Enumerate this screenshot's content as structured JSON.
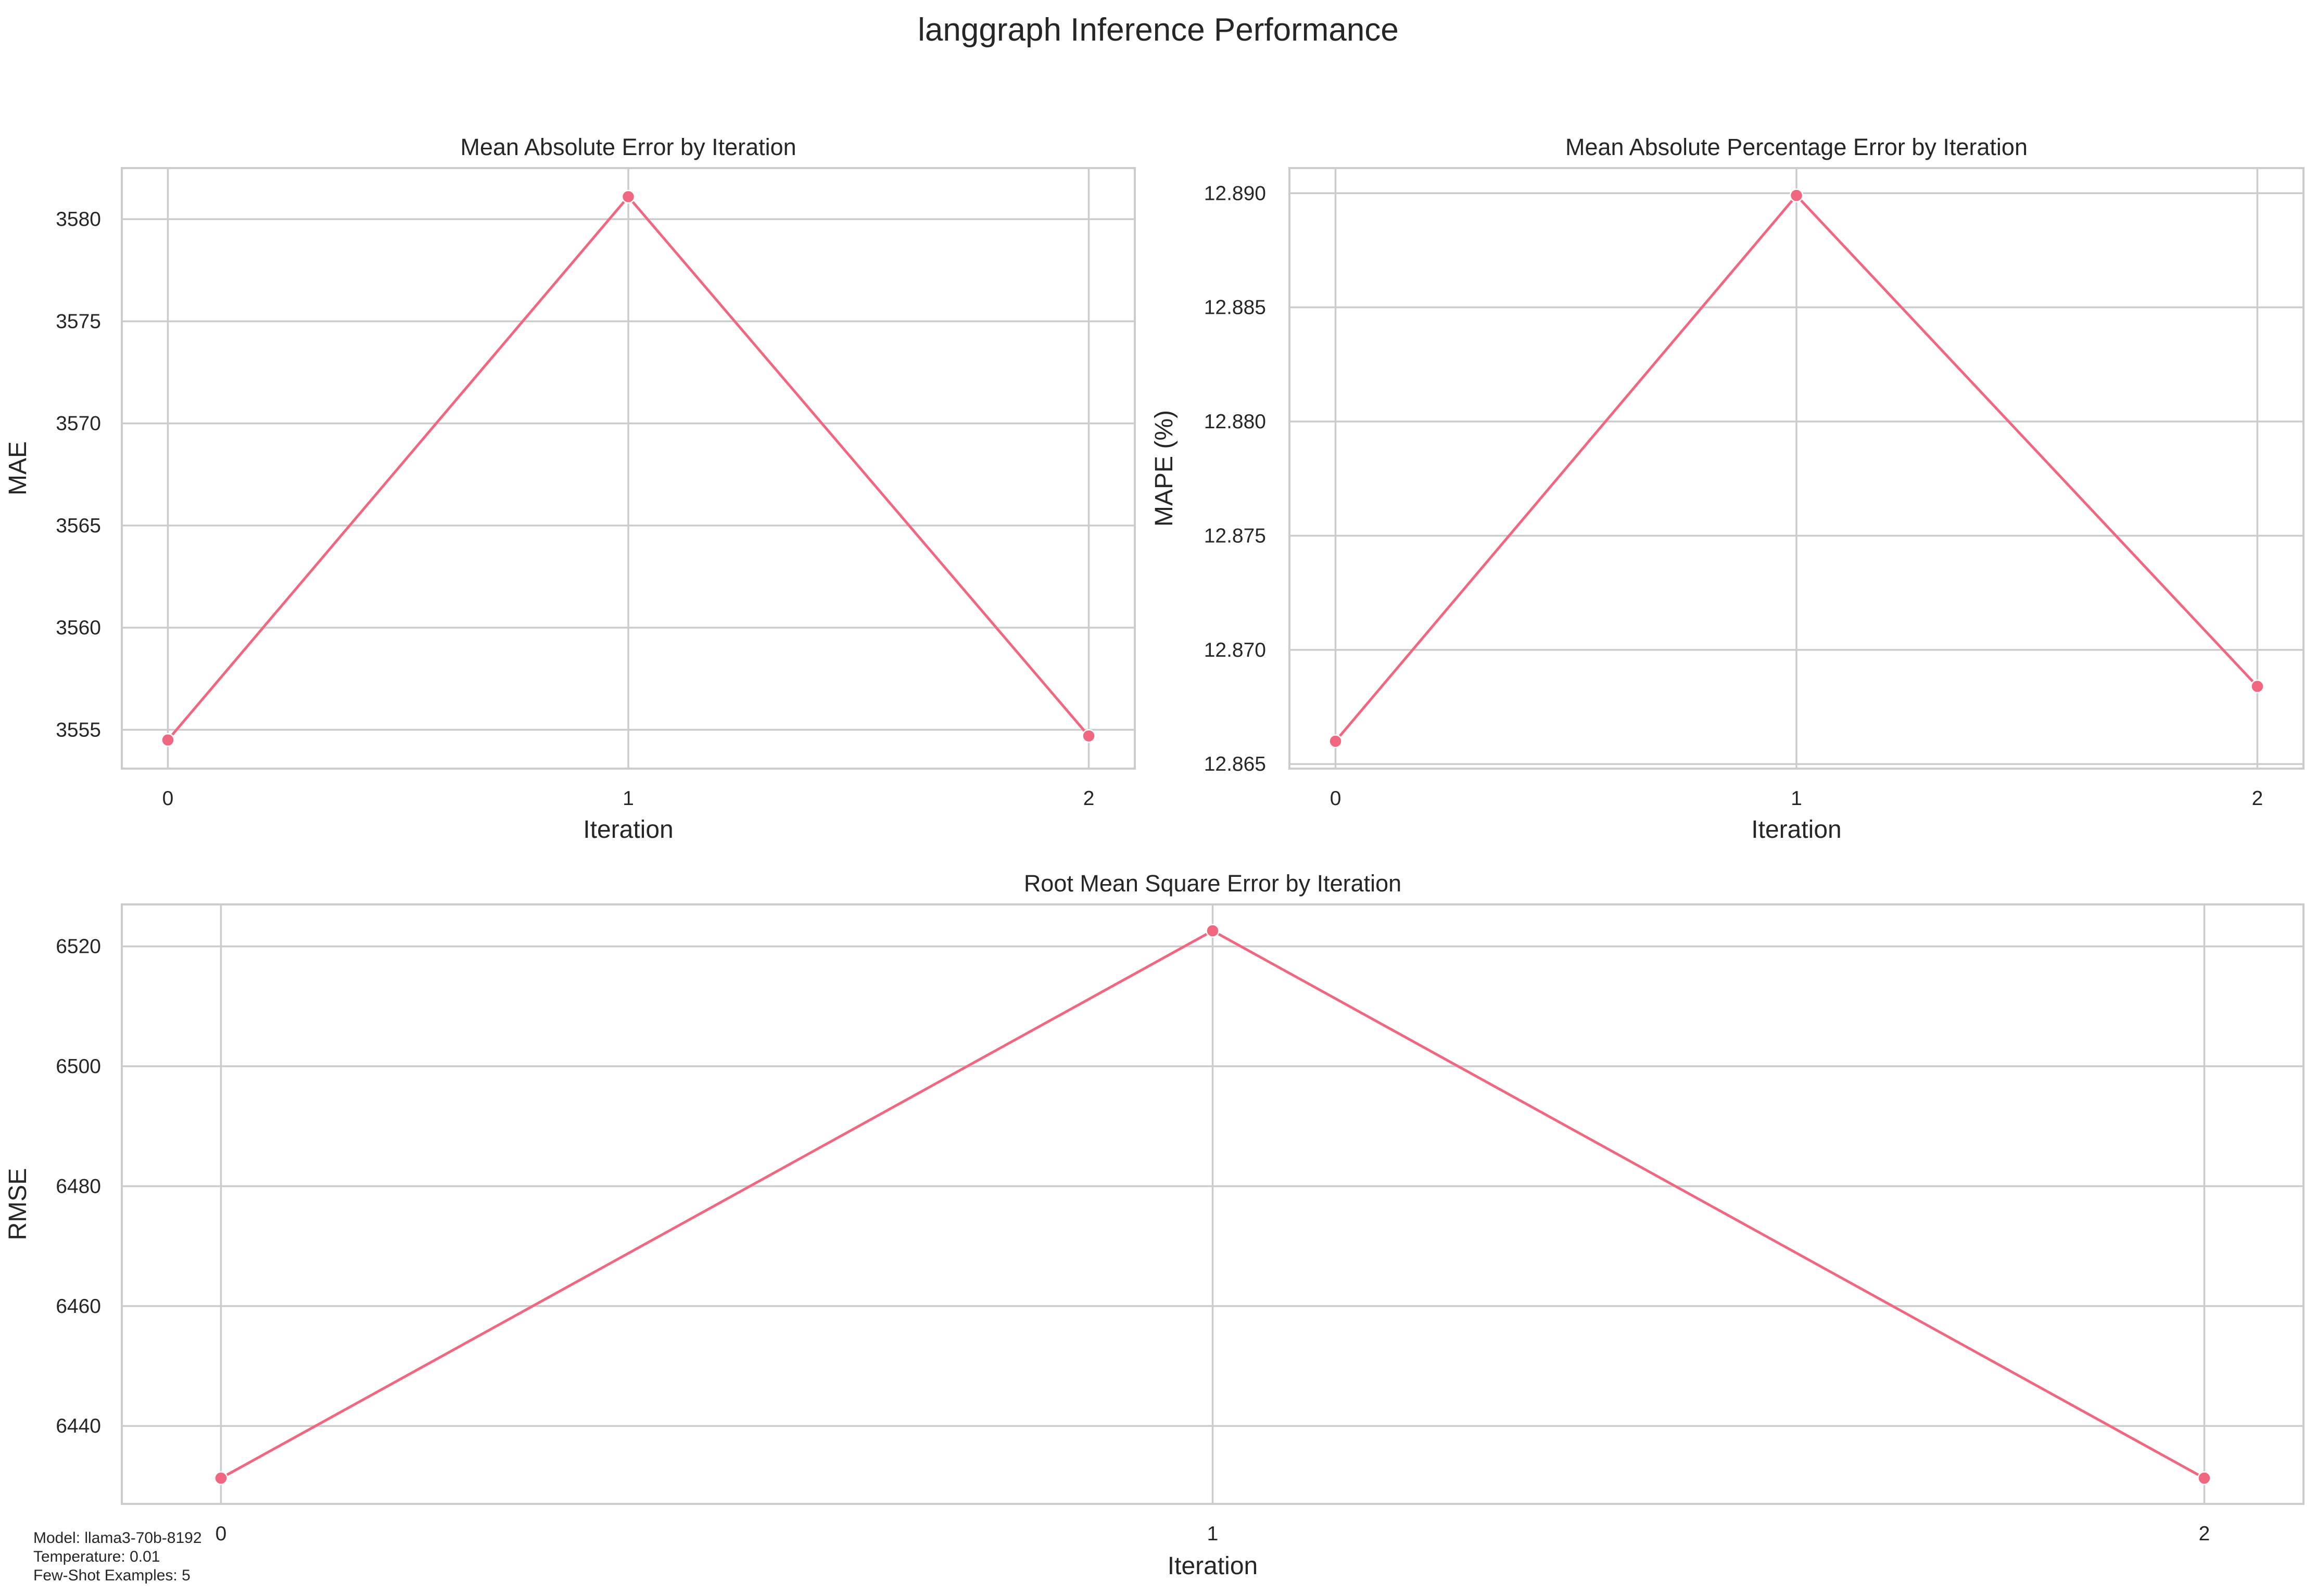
{
  "figure": {
    "title": "langgraph Inference Performance",
    "line_color": "#f0677f",
    "grid_color": "#cccccc",
    "footnote": [
      "Model: llama3-70b-8192",
      "Temperature: 0.01",
      "Few-Shot Examples: 5"
    ]
  },
  "chart_data": [
    {
      "type": "line",
      "title": "Mean Absolute Error by Iteration",
      "xlabel": "Iteration",
      "ylabel": "MAE",
      "x": [
        0,
        1,
        2
      ],
      "y": [
        3554.5,
        3581.1,
        3554.7
      ],
      "xticks": [
        "0",
        "1",
        "2"
      ],
      "yticks": [
        3555,
        3560,
        3565,
        3570,
        3575,
        3580
      ],
      "ytick_labels": [
        "3555",
        "3560",
        "3565",
        "3570",
        "3575",
        "3580"
      ],
      "xlim": [
        -0.1,
        2.1
      ],
      "ylim": [
        3553.1,
        3582.5
      ],
      "grid": true,
      "marker": "circle"
    },
    {
      "type": "line",
      "title": "Mean Absolute Percentage Error by Iteration",
      "xlabel": "Iteration",
      "ylabel": "MAPE (%)",
      "x": [
        0,
        1,
        2
      ],
      "y": [
        12.866,
        12.8899,
        12.8684
      ],
      "xticks": [
        "0",
        "1",
        "2"
      ],
      "yticks": [
        12.865,
        12.87,
        12.875,
        12.88,
        12.885,
        12.89
      ],
      "ytick_labels": [
        "12.865",
        "12.870",
        "12.875",
        "12.880",
        "12.885",
        "12.890"
      ],
      "xlim": [
        -0.1,
        2.1
      ],
      "ylim": [
        12.8648,
        12.8911
      ],
      "grid": true,
      "marker": "circle"
    },
    {
      "type": "line",
      "title": "Root Mean Square Error by Iteration",
      "xlabel": "Iteration",
      "ylabel": "RMSE",
      "x": [
        0,
        1,
        2
      ],
      "y": [
        6431.3,
        6522.6,
        6431.3
      ],
      "xticks": [
        "0",
        "1",
        "2"
      ],
      "yticks": [
        6440,
        6460,
        6480,
        6500,
        6520
      ],
      "ytick_labels": [
        "6440",
        "6460",
        "6480",
        "6500",
        "6520"
      ],
      "xlim": [
        -0.1,
        2.1
      ],
      "ylim": [
        6427.0,
        6527.0
      ],
      "grid": true,
      "marker": "circle"
    }
  ]
}
